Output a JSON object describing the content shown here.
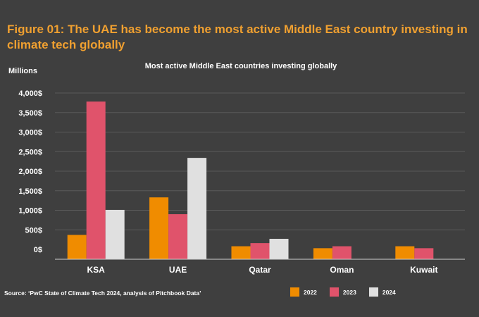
{
  "figure_title": "Figure 01: The UAE has become the most active Middle East country investing in climate tech globally",
  "source": "Source: ‘PwC State of Climate Tech 2024, analysis of Pitchbook Data’",
  "chart_data": {
    "type": "bar",
    "title": "Most active Middle East countries investing globally",
    "ylabel": "Millions",
    "xlabel": "",
    "ylim": [
      -100,
      4000
    ],
    "yticks": [
      0,
      500,
      1000,
      1500,
      2000,
      2500,
      3000,
      3500,
      4000
    ],
    "ytick_labels": [
      "0$",
      "500$",
      "1,000$",
      "1,500$",
      "2,000$",
      "2,500$",
      "3,000$",
      "3,500$",
      "4,000$"
    ],
    "categories": [
      "KSA",
      "UAE",
      "Qatar",
      "Oman",
      "Kuwait"
    ],
    "series": [
      {
        "name": "2022",
        "color": "#f08c00",
        "values": [
          370,
          1330,
          80,
          30,
          80
        ]
      },
      {
        "name": "2023",
        "color": "#e0536b",
        "values": [
          3780,
          900,
          160,
          80,
          30
        ]
      },
      {
        "name": "2024",
        "color": "#e0e0e0",
        "values": [
          1010,
          2340,
          270,
          0,
          0
        ]
      }
    ],
    "grid": true,
    "legend": "bottom-right"
  }
}
